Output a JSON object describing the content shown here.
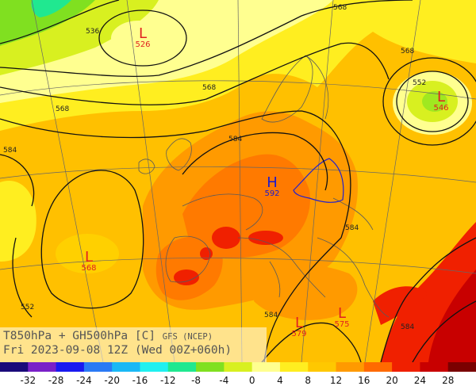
{
  "title": {
    "line1": "T850hPa + GH500hPa [C]",
    "source": "GFS (NCEP)",
    "line2": "Fri 2023-09-08 12Z (Wed 00Z+060h)"
  },
  "systems": [
    {
      "type": "L",
      "value": "526",
      "color": "#e02020"
    },
    {
      "type": "L",
      "value": "546",
      "color": "#e02020"
    },
    {
      "type": "H",
      "value": "592",
      "color": "#1a1ad0"
    },
    {
      "type": "L",
      "value": "568",
      "color": "#e02020"
    },
    {
      "type": "L",
      "value": "579",
      "color": "#e02020"
    },
    {
      "type": "L",
      "value": "575",
      "color": "#e02020"
    }
  ],
  "contour_labels": [
    "536",
    "552",
    "568",
    "568",
    "568",
    "568",
    "584",
    "584",
    "584",
    "584",
    "584",
    "552"
  ],
  "colorbar": {
    "colors": [
      "#1a0a7a",
      "#7a20c8",
      "#1a1af0",
      "#2a7af5",
      "#1ab8f5",
      "#20f0f0",
      "#20e890",
      "#80e020",
      "#d8f020",
      "#ffff90",
      "#ffee20",
      "#ffc800",
      "#ff9a00",
      "#ff6a00",
      "#f02000",
      "#c80000",
      "#7a0000"
    ],
    "ticks": [
      "-32",
      "-28",
      "-24",
      "-20",
      "-16",
      "-12",
      "-8",
      "-4",
      "0",
      "4",
      "8",
      "12",
      "16",
      "20",
      "24",
      "28"
    ]
  }
}
